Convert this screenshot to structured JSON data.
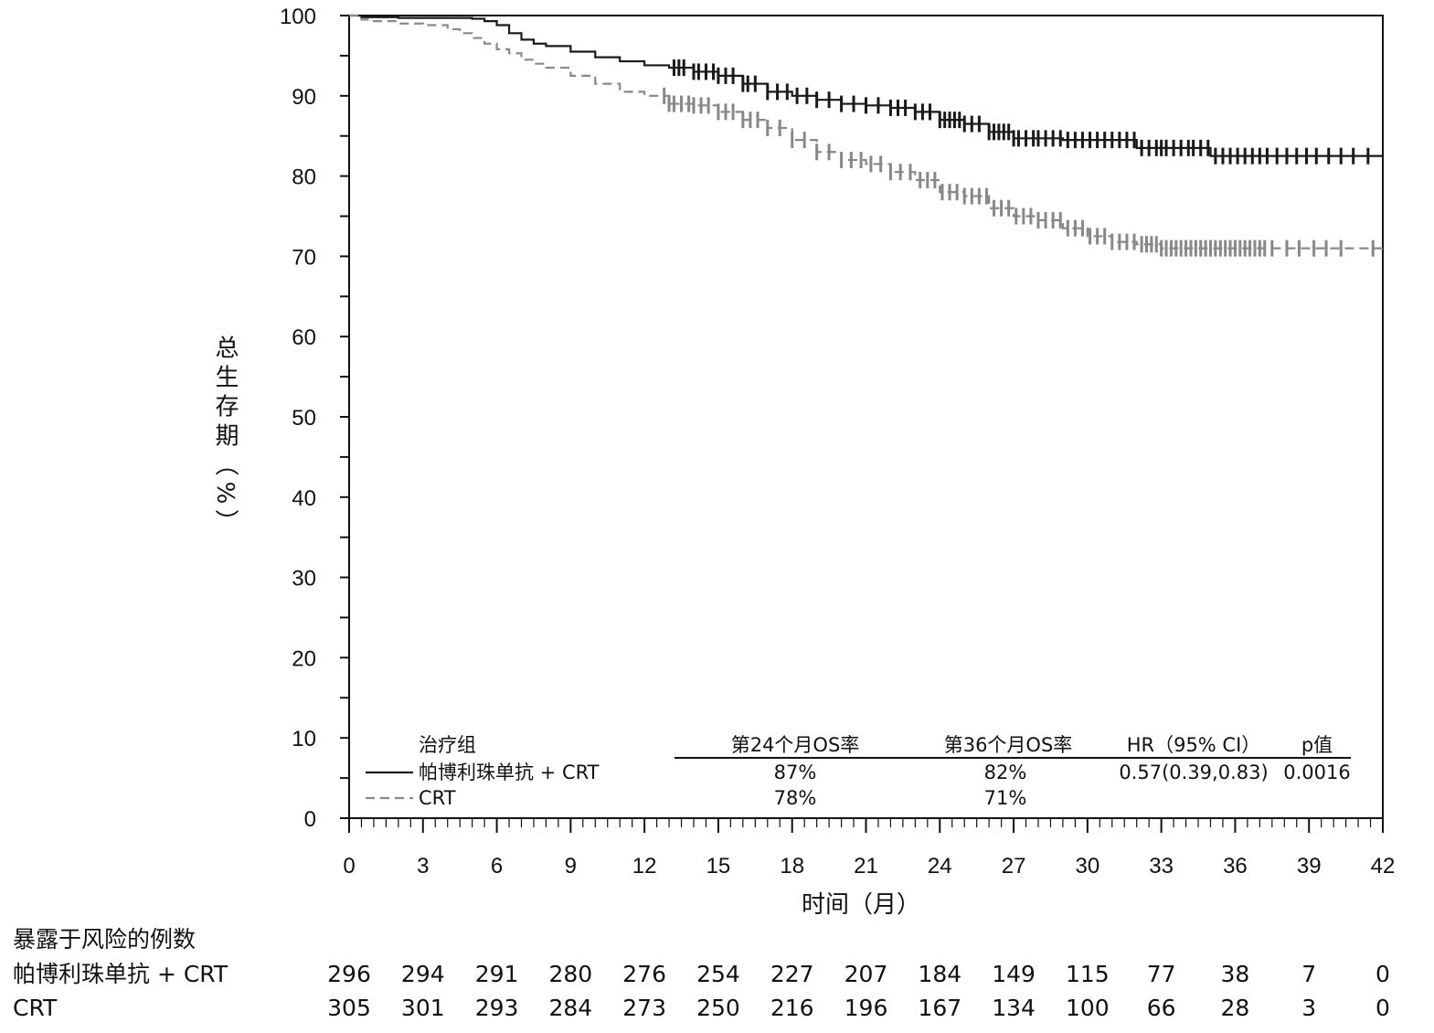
{
  "chart_data": {
    "type": "line",
    "xlabel": "时间（月）",
    "ylabel": "总生存期（%）",
    "xlim": [
      0,
      42
    ],
    "ylim": [
      0,
      100
    ],
    "xticks": [
      0,
      3,
      6,
      9,
      12,
      15,
      18,
      21,
      24,
      27,
      30,
      33,
      36,
      39,
      42
    ],
    "yticks": [
      0,
      10,
      20,
      30,
      40,
      50,
      60,
      70,
      80,
      90,
      100
    ],
    "grid": false,
    "series": [
      {
        "name": "帕博利珠单抗 + CRT",
        "color": "#1a1a1a",
        "style": "solid",
        "x": [
          0,
          0.5,
          1,
          2,
          3,
          4,
          5,
          5.5,
          6,
          6.5,
          7,
          7.5,
          8,
          9,
          10,
          11,
          12,
          13,
          14,
          15,
          16,
          17,
          18,
          19,
          20,
          21,
          22,
          23,
          24,
          25,
          26,
          27,
          28,
          29,
          30,
          31,
          32,
          33,
          34,
          35,
          36,
          37,
          38,
          39,
          40,
          41,
          42
        ],
        "y": [
          100,
          99.8,
          99.8,
          99.7,
          99.7,
          99.7,
          99.6,
          99.3,
          98.8,
          97.8,
          97,
          96.5,
          96.2,
          95.5,
          94.8,
          94.3,
          93.8,
          93.5,
          93,
          92.5,
          91.5,
          90.5,
          90,
          89.5,
          89,
          88.8,
          88.5,
          88,
          87,
          86.5,
          85.5,
          84.7,
          84.7,
          84.5,
          84.5,
          84.5,
          83.5,
          83.5,
          83.5,
          82.5,
          82.5,
          82.5,
          82.5,
          82.5,
          82.5,
          82.5,
          82.5
        ],
        "censor_x": [
          13.2,
          13.4,
          13.6,
          14,
          14.2,
          14.5,
          14.8,
          15,
          15.3,
          15.6,
          16,
          16.2,
          16.5,
          17,
          17.4,
          17.8,
          18.2,
          18.6,
          19,
          19.5,
          20,
          20.5,
          21,
          21.5,
          22,
          22.3,
          22.6,
          23,
          23.3,
          23.6,
          24,
          24.2,
          24.4,
          24.6,
          24.8,
          25,
          25.3,
          25.6,
          26,
          26.2,
          26.4,
          26.6,
          26.8,
          27,
          27.2,
          27.5,
          27.8,
          28,
          28.3,
          28.6,
          28.9,
          29.2,
          29.5,
          29.8,
          30.1,
          30.4,
          30.7,
          31,
          31.3,
          31.6,
          31.9,
          32.2,
          32.5,
          32.8,
          33,
          33.2,
          33.5,
          33.8,
          34.1,
          34.3,
          34.6,
          34.9,
          35.2,
          35.5,
          35.8,
          36.1,
          36.4,
          36.7,
          37,
          37.3,
          37.7,
          38.1,
          38.5,
          38.9,
          39.3,
          39.8,
          40.3,
          40.8,
          41.4
        ],
        "risk_label": "帕博利珠单抗 + CRT",
        "os24": "87%",
        "os36": "82%",
        "hr": "0.57(0.39,0.83)",
        "p": "0.0016",
        "at_risk": [
          "296",
          "294",
          "291",
          "280",
          "276",
          "254",
          "227",
          "207",
          "184",
          "149",
          "115",
          "77",
          "38",
          "7",
          "0"
        ]
      },
      {
        "name": "CRT",
        "color": "#888888",
        "style": "dashed",
        "x": [
          0,
          0.5,
          1,
          2,
          3,
          4,
          4.5,
          5,
          5.5,
          6,
          6.5,
          7,
          7.5,
          8,
          9,
          10,
          11,
          12,
          13,
          14,
          15,
          16,
          17,
          18,
          19,
          20,
          21,
          22,
          23,
          24,
          25,
          26,
          27,
          28,
          29,
          30,
          31,
          32,
          33,
          34,
          35,
          36,
          37,
          38,
          39,
          40,
          41,
          42
        ],
        "y": [
          100,
          99.5,
          99.3,
          99,
          98.8,
          98.3,
          97.8,
          97.2,
          96.5,
          95.8,
          95.3,
          94.5,
          94,
          93.5,
          92.5,
          91.5,
          90.5,
          90,
          89,
          88.8,
          88,
          87,
          86,
          84.5,
          83,
          82,
          81.5,
          80.5,
          79.5,
          78,
          77.5,
          76,
          75,
          74.5,
          73.5,
          72.5,
          71.8,
          71.5,
          71,
          71,
          71,
          71,
          71,
          71,
          71,
          71,
          71,
          71
        ],
        "censor_x": [
          12.8,
          13,
          13.2,
          13.5,
          13.8,
          14,
          14.3,
          14.6,
          15,
          15.3,
          15.6,
          16,
          16.3,
          16.6,
          17,
          17.5,
          18,
          18.5,
          19,
          19.5,
          20,
          20.4,
          20.8,
          21.2,
          21.6,
          22,
          22.4,
          22.8,
          23.2,
          23.5,
          23.8,
          24.1,
          24.4,
          24.7,
          25,
          25.3,
          25.6,
          25.9,
          26.2,
          26.5,
          26.8,
          27.1,
          27.4,
          27.7,
          28,
          28.3,
          28.6,
          28.9,
          29.2,
          29.5,
          29.8,
          30.1,
          30.4,
          30.7,
          31,
          31.3,
          31.6,
          31.9,
          32.2,
          32.4,
          32.6,
          32.8,
          33,
          33.2,
          33.4,
          33.6,
          33.8,
          34,
          34.2,
          34.4,
          34.6,
          34.8,
          35,
          35.2,
          35.4,
          35.6,
          35.8,
          36,
          36.2,
          36.4,
          36.6,
          36.8,
          37,
          37.2,
          37.5,
          38.1,
          38.6,
          39.2,
          39.7,
          40.3,
          41.6
        ],
        "risk_label": "CRT",
        "os24": "78%",
        "os36": "71%",
        "at_risk": [
          "305",
          "301",
          "293",
          "284",
          "273",
          "250",
          "216",
          "196",
          "167",
          "134",
          "100",
          "66",
          "28",
          "3",
          "0"
        ]
      }
    ],
    "legend": {
      "title": "治疗组",
      "col_os24": "第24个月OS率",
      "col_os36": "第36个月OS率",
      "col_hr": "HR（95% CI）",
      "col_p": "p值"
    },
    "risk_table": {
      "title": "暴露于风险的例数"
    }
  }
}
